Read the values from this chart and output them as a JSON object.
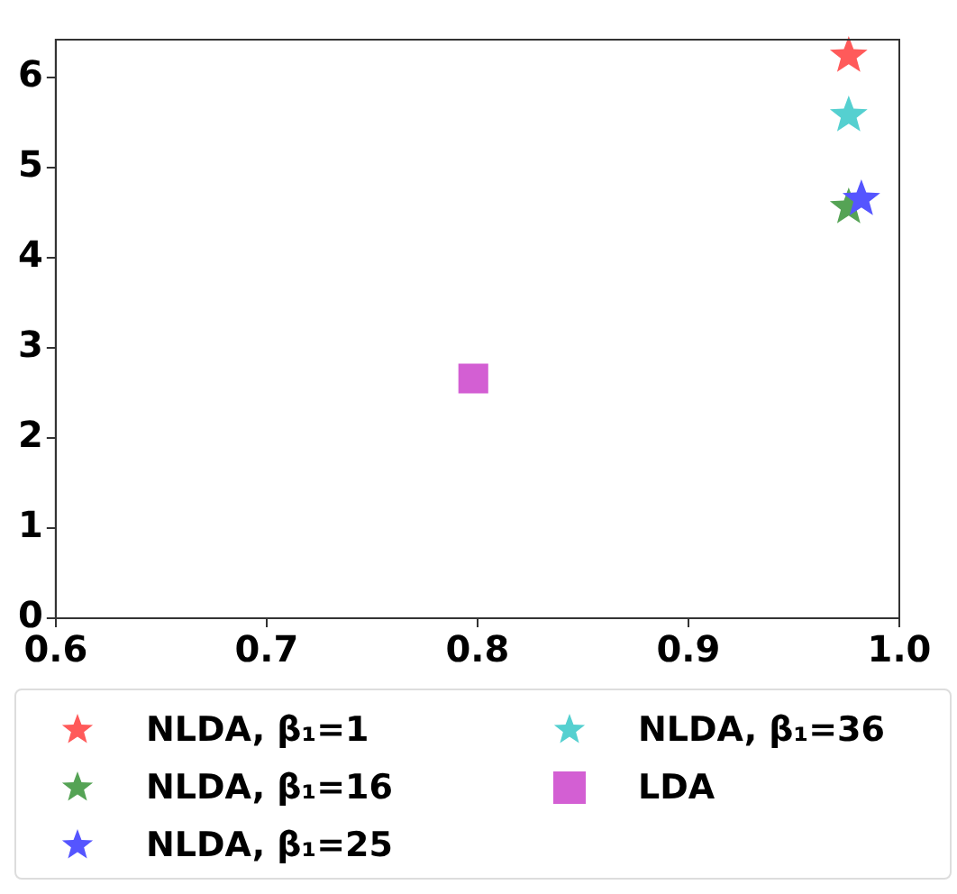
{
  "chart_data": {
    "type": "scatter",
    "xlim": [
      0.6,
      1.0
    ],
    "ylim": [
      0,
      6.42
    ],
    "xticks": [
      {
        "value": 0.6,
        "label": "0.6"
      },
      {
        "value": 0.7,
        "label": "0.7"
      },
      {
        "value": 0.8,
        "label": "0.8"
      },
      {
        "value": 0.9,
        "label": "0.9"
      },
      {
        "value": 1.0,
        "label": "1.0"
      }
    ],
    "yticks": [
      0,
      1,
      2,
      3,
      4,
      5,
      6
    ],
    "grid": false,
    "legend": "bottom",
    "series": [
      {
        "name": "NLDA, β₁=1",
        "color": "#ff5a5a",
        "marker": "star",
        "x": [
          0.976
        ],
        "values": [
          6.24
        ]
      },
      {
        "name": "NLDA, β₁=16",
        "color": "#55a355",
        "marker": "star",
        "x": [
          0.976
        ],
        "values": [
          4.56
        ]
      },
      {
        "name": "NLDA, β₁=25",
        "color": "#5555ff",
        "marker": "star",
        "x": [
          0.982
        ],
        "values": [
          4.65
        ]
      },
      {
        "name": "NLDA, β₁=36",
        "color": "#55d0d0",
        "marker": "star",
        "x": [
          0.976
        ],
        "values": [
          5.58
        ]
      },
      {
        "name": "LDA",
        "color": "#d35fd3",
        "marker": "square",
        "x": [
          0.798
        ],
        "values": [
          2.66
        ]
      }
    ]
  }
}
